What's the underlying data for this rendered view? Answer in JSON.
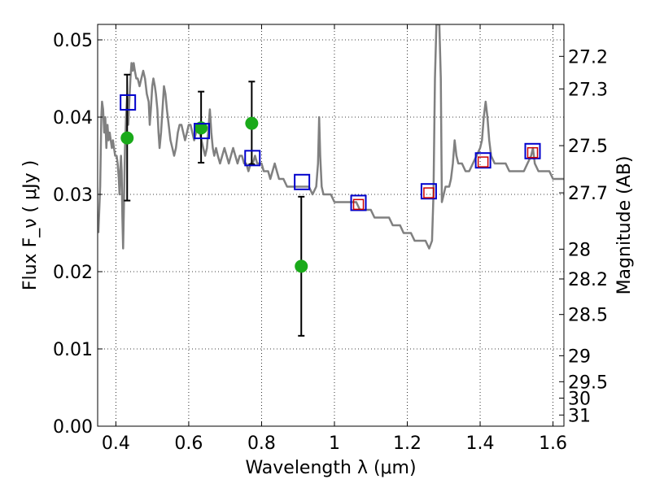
{
  "chart_data": {
    "type": "scatter",
    "xlabel": "Wavelength  λ (μm)",
    "ylabel": "Flux  F_ν  ( μJy )",
    "ylabel_right": "Magnitude (AB)",
    "xlim": [
      0.35,
      1.63
    ],
    "ylim": [
      0.0,
      0.052
    ],
    "grid": true,
    "x_ticks": [
      {
        "value": 0.4,
        "label": "0.4"
      },
      {
        "value": 0.6,
        "label": "0.6"
      },
      {
        "value": 0.8,
        "label": "0.8"
      },
      {
        "value": 1.0,
        "label": "1"
      },
      {
        "value": 1.2,
        "label": "1.2"
      },
      {
        "value": 1.4,
        "label": "1.4"
      },
      {
        "value": 1.6,
        "label": "1.6"
      }
    ],
    "y_ticks": [
      {
        "value": 0.0,
        "label": "0.00"
      },
      {
        "value": 0.01,
        "label": "0.01"
      },
      {
        "value": 0.02,
        "label": "0.02"
      },
      {
        "value": 0.03,
        "label": "0.03"
      },
      {
        "value": 0.04,
        "label": "0.04"
      },
      {
        "value": 0.05,
        "label": "0.05"
      }
    ],
    "mag_ticks": [
      {
        "value": 27.2,
        "label": "27.2"
      },
      {
        "value": 27.3,
        "label": "27.3"
      },
      {
        "value": 27.5,
        "label": "27.5"
      },
      {
        "value": 27.7,
        "label": "27.7"
      },
      {
        "value": 28.0,
        "label": "28"
      },
      {
        "value": 28.2,
        "label": "28.2"
      },
      {
        "value": 28.5,
        "label": "28.5"
      },
      {
        "value": 29.0,
        "label": "29"
      },
      {
        "value": 29.5,
        "label": "29.5"
      },
      {
        "value": 30.0,
        "label": "30"
      },
      {
        "value": 31.0,
        "label": "31"
      }
    ],
    "series": [
      {
        "kind": "line",
        "color": "#808080",
        "points": [
          [
            0.352,
            0.025
          ],
          [
            0.357,
            0.031
          ],
          [
            0.36,
            0.04
          ],
          [
            0.362,
            0.042
          ],
          [
            0.365,
            0.041
          ],
          [
            0.368,
            0.038
          ],
          [
            0.371,
            0.04
          ],
          [
            0.374,
            0.036
          ],
          [
            0.377,
            0.039
          ],
          [
            0.38,
            0.037
          ],
          [
            0.383,
            0.038
          ],
          [
            0.386,
            0.037
          ],
          [
            0.389,
            0.036
          ],
          [
            0.392,
            0.037
          ],
          [
            0.395,
            0.036
          ],
          [
            0.398,
            0.035
          ],
          [
            0.402,
            0.035
          ],
          [
            0.405,
            0.034
          ],
          [
            0.408,
            0.032
          ],
          [
            0.41,
            0.03
          ],
          [
            0.412,
            0.033
          ],
          [
            0.414,
            0.035
          ],
          [
            0.416,
            0.033
          ],
          [
            0.418,
            0.027
          ],
          [
            0.42,
            0.023
          ],
          [
            0.422,
            0.028
          ],
          [
            0.425,
            0.036
          ],
          [
            0.428,
            0.04
          ],
          [
            0.431,
            0.043
          ],
          [
            0.434,
            0.039
          ],
          [
            0.437,
            0.042
          ],
          [
            0.44,
            0.045
          ],
          [
            0.443,
            0.047
          ],
          [
            0.446,
            0.046
          ],
          [
            0.449,
            0.047
          ],
          [
            0.452,
            0.046
          ],
          [
            0.456,
            0.045
          ],
          [
            0.46,
            0.045
          ],
          [
            0.465,
            0.044
          ],
          [
            0.47,
            0.045
          ],
          [
            0.475,
            0.046
          ],
          [
            0.48,
            0.045
          ],
          [
            0.485,
            0.043
          ],
          [
            0.49,
            0.042
          ],
          [
            0.493,
            0.039
          ],
          [
            0.496,
            0.041
          ],
          [
            0.5,
            0.044
          ],
          [
            0.503,
            0.045
          ],
          [
            0.507,
            0.044
          ],
          [
            0.51,
            0.043
          ],
          [
            0.514,
            0.041
          ],
          [
            0.517,
            0.038
          ],
          [
            0.52,
            0.036
          ],
          [
            0.524,
            0.038
          ],
          [
            0.528,
            0.041
          ],
          [
            0.532,
            0.044
          ],
          [
            0.536,
            0.043
          ],
          [
            0.54,
            0.041
          ],
          [
            0.545,
            0.039
          ],
          [
            0.55,
            0.037
          ],
          [
            0.555,
            0.036
          ],
          [
            0.56,
            0.035
          ],
          [
            0.565,
            0.036
          ],
          [
            0.57,
            0.038
          ],
          [
            0.575,
            0.039
          ],
          [
            0.58,
            0.039
          ],
          [
            0.585,
            0.038
          ],
          [
            0.59,
            0.037
          ],
          [
            0.595,
            0.038
          ],
          [
            0.6,
            0.039
          ],
          [
            0.605,
            0.039
          ],
          [
            0.61,
            0.038
          ],
          [
            0.615,
            0.037
          ],
          [
            0.62,
            0.038
          ],
          [
            0.625,
            0.039
          ],
          [
            0.63,
            0.038
          ],
          [
            0.635,
            0.037
          ],
          [
            0.64,
            0.036
          ],
          [
            0.645,
            0.035
          ],
          [
            0.65,
            0.036
          ],
          [
            0.655,
            0.039
          ],
          [
            0.658,
            0.041
          ],
          [
            0.662,
            0.038
          ],
          [
            0.666,
            0.036
          ],
          [
            0.67,
            0.035
          ],
          [
            0.675,
            0.036
          ],
          [
            0.68,
            0.035
          ],
          [
            0.686,
            0.034
          ],
          [
            0.692,
            0.035
          ],
          [
            0.698,
            0.036
          ],
          [
            0.704,
            0.035
          ],
          [
            0.71,
            0.034
          ],
          [
            0.716,
            0.035
          ],
          [
            0.722,
            0.036
          ],
          [
            0.728,
            0.035
          ],
          [
            0.734,
            0.034
          ],
          [
            0.74,
            0.035
          ],
          [
            0.746,
            0.035
          ],
          [
            0.752,
            0.034
          ],
          [
            0.758,
            0.034
          ],
          [
            0.764,
            0.033
          ],
          [
            0.77,
            0.034
          ],
          [
            0.776,
            0.034
          ],
          [
            0.782,
            0.035
          ],
          [
            0.788,
            0.034
          ],
          [
            0.794,
            0.034
          ],
          [
            0.8,
            0.034
          ],
          [
            0.806,
            0.033
          ],
          [
            0.812,
            0.033
          ],
          [
            0.818,
            0.033
          ],
          [
            0.824,
            0.032
          ],
          [
            0.83,
            0.033
          ],
          [
            0.836,
            0.034
          ],
          [
            0.842,
            0.033
          ],
          [
            0.848,
            0.032
          ],
          [
            0.854,
            0.032
          ],
          [
            0.86,
            0.032
          ],
          [
            0.87,
            0.031
          ],
          [
            0.88,
            0.031
          ],
          [
            0.89,
            0.031
          ],
          [
            0.9,
            0.031
          ],
          [
            0.91,
            0.031
          ],
          [
            0.92,
            0.031
          ],
          [
            0.93,
            0.031
          ],
          [
            0.94,
            0.03
          ],
          [
            0.95,
            0.031
          ],
          [
            0.955,
            0.034
          ],
          [
            0.958,
            0.04
          ],
          [
            0.961,
            0.035
          ],
          [
            0.965,
            0.031
          ],
          [
            0.97,
            0.03
          ],
          [
            0.98,
            0.03
          ],
          [
            0.99,
            0.03
          ],
          [
            1.0,
            0.029
          ],
          [
            1.01,
            0.029
          ],
          [
            1.02,
            0.029
          ],
          [
            1.03,
            0.029
          ],
          [
            1.04,
            0.029
          ],
          [
            1.05,
            0.029
          ],
          [
            1.06,
            0.029
          ],
          [
            1.07,
            0.028
          ],
          [
            1.08,
            0.028
          ],
          [
            1.09,
            0.028
          ],
          [
            1.1,
            0.028
          ],
          [
            1.11,
            0.027
          ],
          [
            1.12,
            0.027
          ],
          [
            1.13,
            0.027
          ],
          [
            1.14,
            0.027
          ],
          [
            1.15,
            0.027
          ],
          [
            1.16,
            0.026
          ],
          [
            1.17,
            0.026
          ],
          [
            1.18,
            0.026
          ],
          [
            1.19,
            0.025
          ],
          [
            1.2,
            0.025
          ],
          [
            1.21,
            0.025
          ],
          [
            1.22,
            0.024
          ],
          [
            1.23,
            0.024
          ],
          [
            1.24,
            0.024
          ],
          [
            1.25,
            0.024
          ],
          [
            1.26,
            0.023
          ],
          [
            1.268,
            0.024
          ],
          [
            1.272,
            0.03
          ],
          [
            1.276,
            0.045
          ],
          [
            1.28,
            0.052
          ],
          [
            1.284,
            0.052
          ],
          [
            1.288,
            0.052
          ],
          [
            1.292,
            0.045
          ],
          [
            1.295,
            0.029
          ],
          [
            1.3,
            0.03
          ],
          [
            1.305,
            0.031
          ],
          [
            1.31,
            0.031
          ],
          [
            1.315,
            0.031
          ],
          [
            1.32,
            0.032
          ],
          [
            1.325,
            0.034
          ],
          [
            1.33,
            0.037
          ],
          [
            1.335,
            0.035
          ],
          [
            1.34,
            0.034
          ],
          [
            1.35,
            0.034
          ],
          [
            1.36,
            0.033
          ],
          [
            1.37,
            0.033
          ],
          [
            1.38,
            0.034
          ],
          [
            1.39,
            0.035
          ],
          [
            1.4,
            0.036
          ],
          [
            1.405,
            0.037
          ],
          [
            1.41,
            0.04
          ],
          [
            1.415,
            0.042
          ],
          [
            1.42,
            0.04
          ],
          [
            1.425,
            0.037
          ],
          [
            1.43,
            0.035
          ],
          [
            1.44,
            0.034
          ],
          [
            1.45,
            0.034
          ],
          [
            1.46,
            0.034
          ],
          [
            1.47,
            0.034
          ],
          [
            1.48,
            0.033
          ],
          [
            1.49,
            0.033
          ],
          [
            1.5,
            0.033
          ],
          [
            1.51,
            0.033
          ],
          [
            1.52,
            0.033
          ],
          [
            1.53,
            0.034
          ],
          [
            1.54,
            0.035
          ],
          [
            1.545,
            0.036
          ],
          [
            1.55,
            0.034
          ],
          [
            1.56,
            0.033
          ],
          [
            1.57,
            0.033
          ],
          [
            1.58,
            0.033
          ],
          [
            1.59,
            0.033
          ],
          [
            1.6,
            0.032
          ],
          [
            1.61,
            0.032
          ],
          [
            1.62,
            0.032
          ],
          [
            1.63,
            0.032
          ]
        ]
      },
      {
        "kind": "observed",
        "marker": "circle",
        "color": "#1aaa1a",
        "points": [
          {
            "x": 0.431,
            "y": 0.0373,
            "ylow": 0.0292,
            "yhigh": 0.0455
          },
          {
            "x": 0.634,
            "y": 0.0386,
            "ylow": 0.0341,
            "yhigh": 0.0433
          },
          {
            "x": 0.773,
            "y": 0.0392,
            "ylow": 0.0339,
            "yhigh": 0.0446
          },
          {
            "x": 0.909,
            "y": 0.0207,
            "ylow": 0.0117,
            "yhigh": 0.0297
          }
        ]
      },
      {
        "kind": "model",
        "marker": "square",
        "color": "#0000cc",
        "points": [
          [
            0.433,
            0.0419
          ],
          [
            0.636,
            0.0382
          ],
          [
            0.775,
            0.0347
          ],
          [
            0.911,
            0.0316
          ],
          [
            1.066,
            0.0289
          ],
          [
            1.259,
            0.0304
          ],
          [
            1.408,
            0.0344
          ],
          [
            1.544,
            0.0356
          ]
        ]
      },
      {
        "kind": "model-ir",
        "marker": "small-square",
        "color": "#cc0000",
        "points": [
          [
            1.066,
            0.0287
          ],
          [
            1.259,
            0.0302
          ],
          [
            1.408,
            0.0342
          ],
          [
            1.544,
            0.0354
          ]
        ]
      }
    ]
  }
}
